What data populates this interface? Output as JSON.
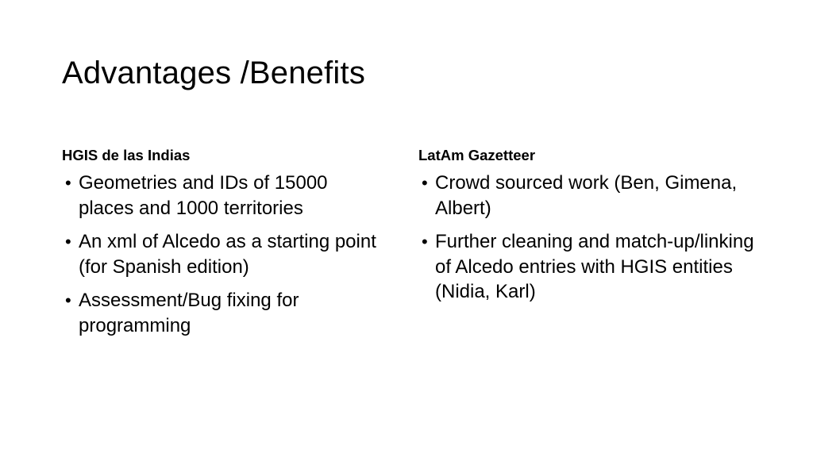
{
  "slide": {
    "title": "Advantages /Benefits",
    "columns": [
      {
        "heading": "HGIS de las Indias",
        "bullets": [
          "Geometries and IDs of 15000 places and 1000 territories",
          "An xml of Alcedo as a starting point (for Spanish edition)",
          "Assessment/Bug fixing for programming"
        ]
      },
      {
        "heading": "LatAm Gazetteer",
        "bullets": [
          "Crowd sourced work (Ben, Gimena, Albert)",
          "Further cleaning and match-up/linking of Alcedo entries with HGIS entities (Nidia, Karl)"
        ]
      }
    ]
  }
}
